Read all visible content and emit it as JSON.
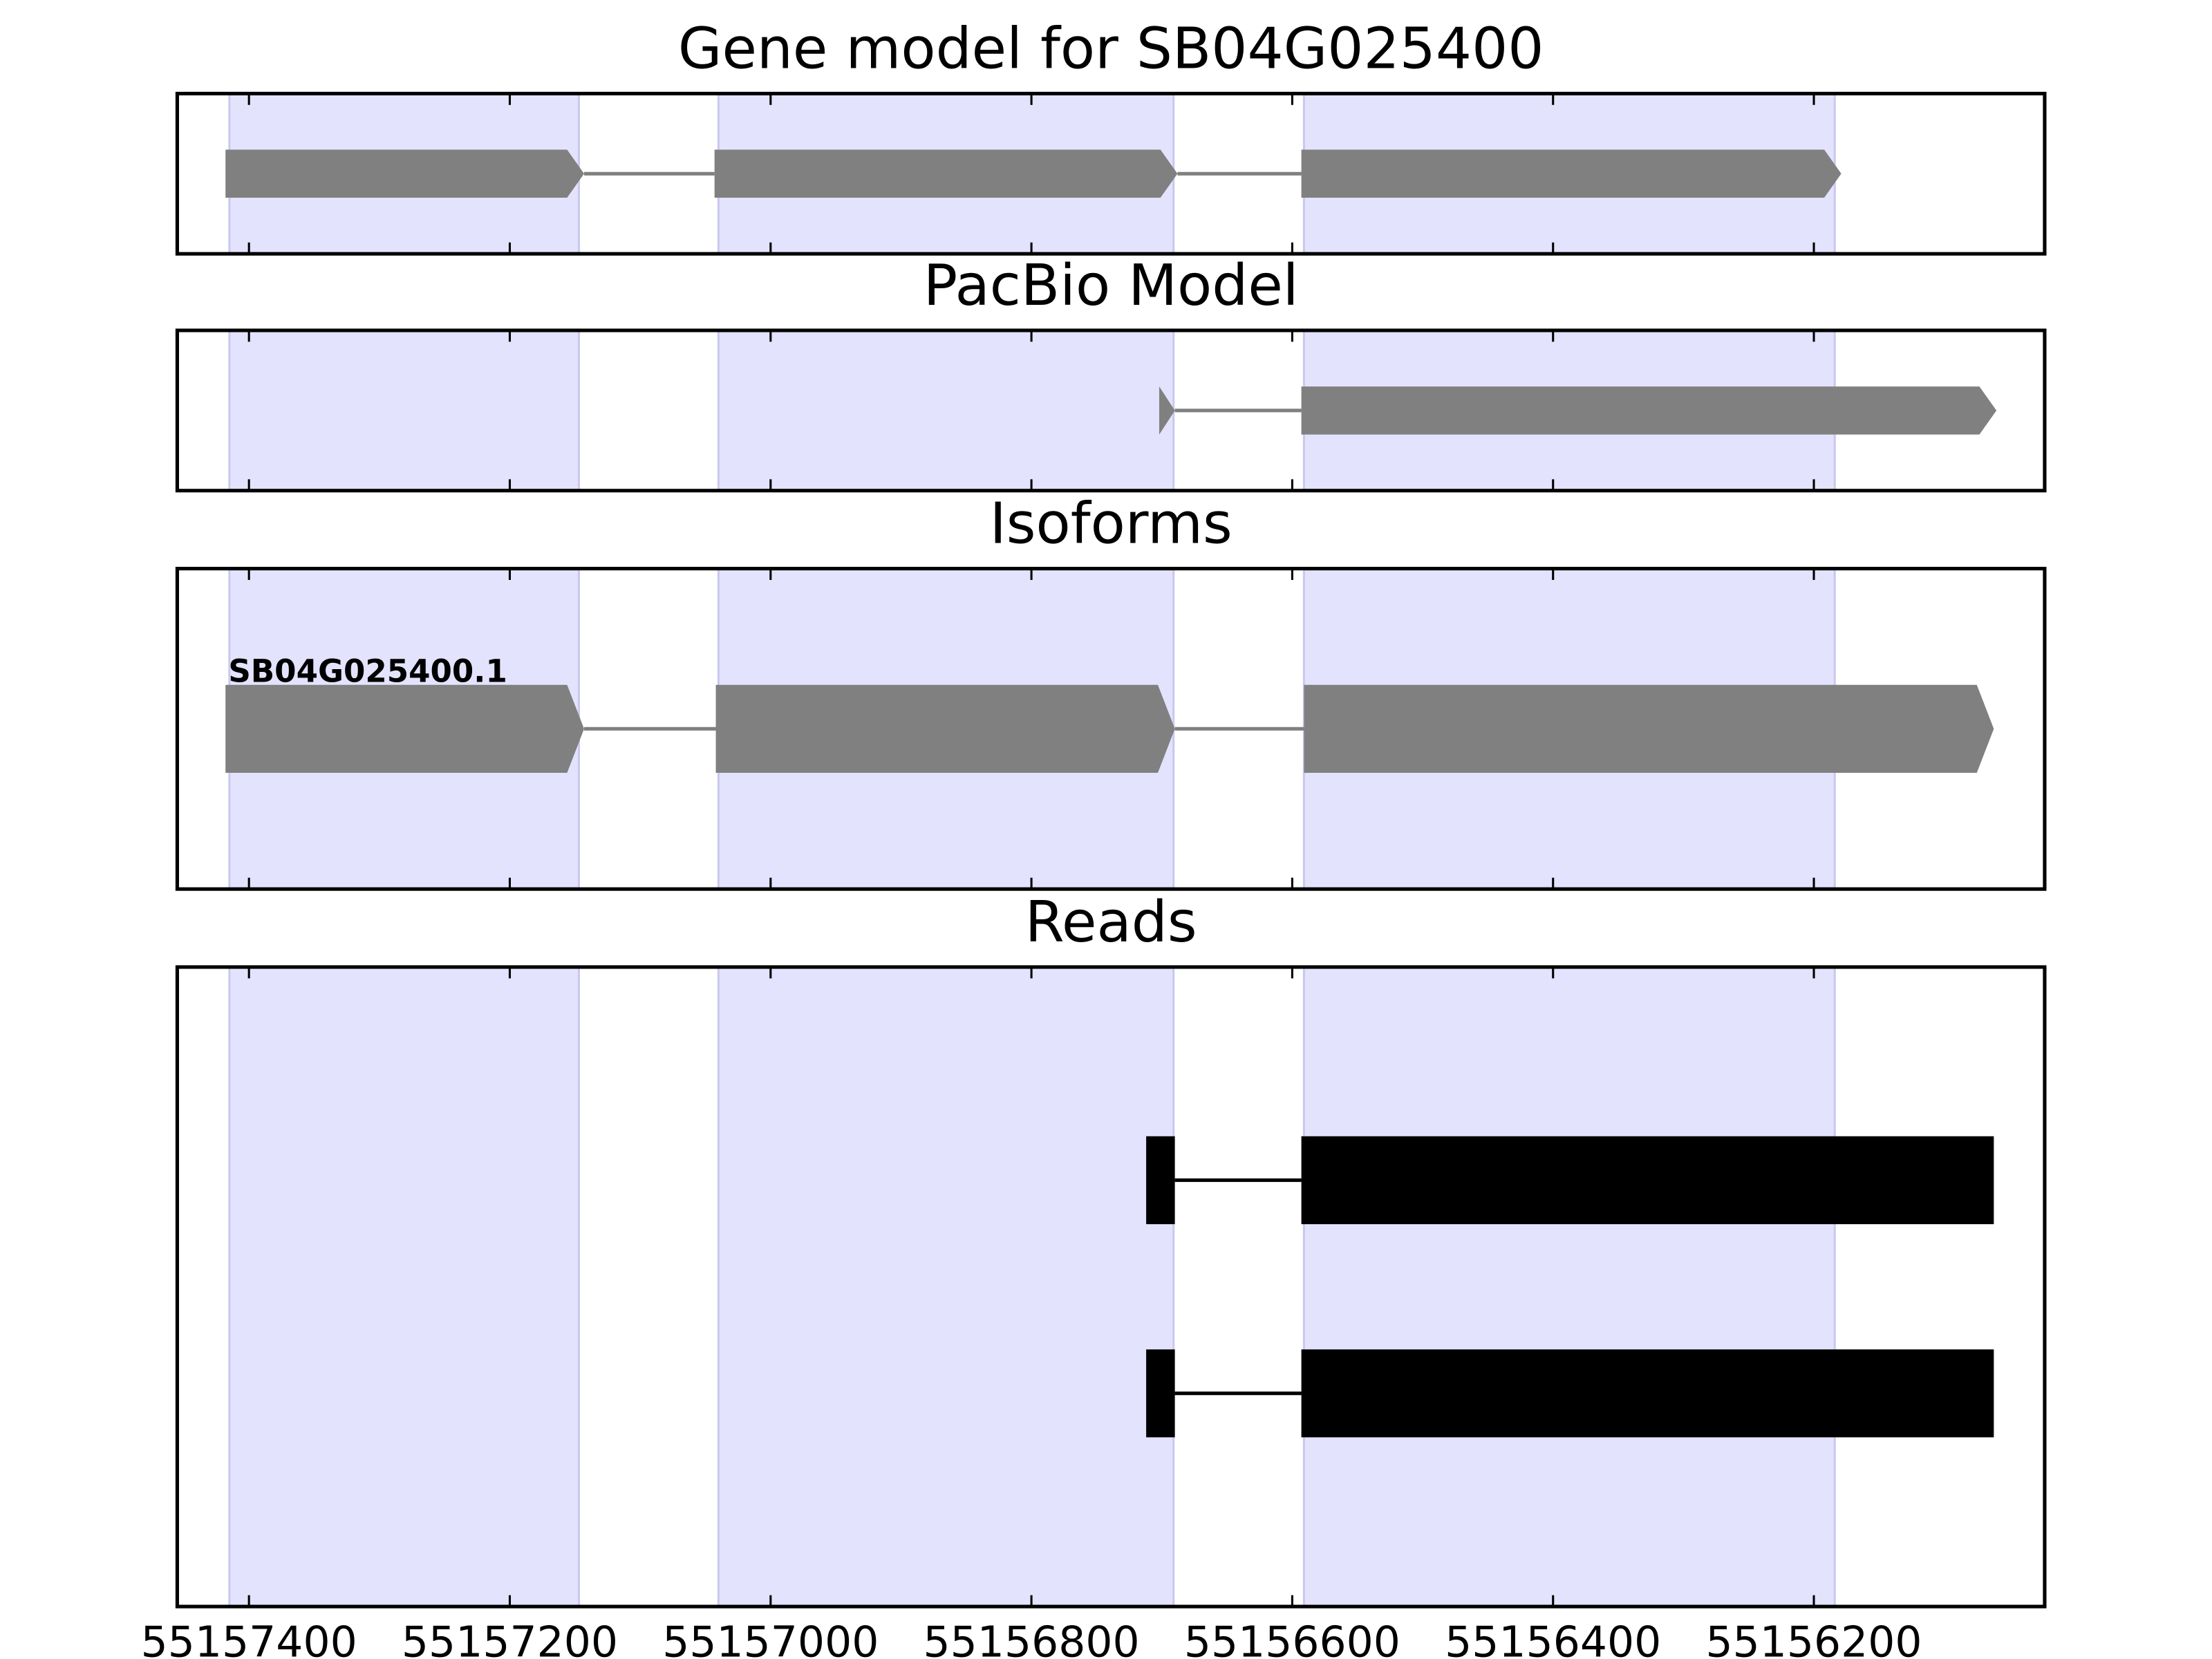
{
  "chart_data": [
    {
      "type": "gene-track",
      "title": "Gene model for SB04G025400",
      "xlim": [
        55157455,
        55156023
      ],
      "xticks": [
        55157400,
        55157200,
        55157000,
        55156800,
        55156600,
        55156400,
        55156200
      ],
      "highlights": [
        [
          55157415,
          55157147
        ],
        [
          55157040,
          55156691
        ],
        [
          55156591,
          55156184
        ]
      ],
      "highlight_color": "#e3e3fd",
      "arrow": true,
      "features": [
        {
          "color": "#808080",
          "exons": [
            [
              55157418,
              55157143
            ],
            [
              55157043,
              55156688
            ],
            [
              55156593,
              55156179
            ]
          ]
        }
      ]
    },
    {
      "type": "gene-track",
      "title": "PacBio Model",
      "xlim": [
        55157455,
        55156023
      ],
      "xticks": [
        55157400,
        55157200,
        55157000,
        55156800,
        55156600,
        55156400,
        55156200
      ],
      "highlights": [
        [
          55157415,
          55157147
        ],
        [
          55157040,
          55156691
        ],
        [
          55156591,
          55156184
        ]
      ],
      "highlight_color": "#e3e3fd",
      "arrow": true,
      "features": [
        {
          "color": "#808080",
          "exons": [
            [
              55156702,
              55156690
            ],
            [
              55156593,
              55156060
            ]
          ]
        }
      ]
    },
    {
      "type": "gene-track",
      "title": "Isoforms",
      "xlim": [
        55157455,
        55156023
      ],
      "xticks": [
        55157400,
        55157200,
        55157000,
        55156800,
        55156600,
        55156400,
        55156200
      ],
      "highlights": [
        [
          55157415,
          55157147
        ],
        [
          55157040,
          55156691
        ],
        [
          55156591,
          55156184
        ]
      ],
      "highlight_color": "#e3e3fd",
      "arrow": true,
      "features": [
        {
          "name": "SB04G025400.1",
          "color": "#808080",
          "exons": [
            [
              55157418,
              55157143
            ],
            [
              55157042,
              55156690
            ],
            [
              55156591,
              55156062
            ]
          ]
        }
      ]
    },
    {
      "type": "gene-track",
      "title": "Reads",
      "xlim": [
        55157455,
        55156023
      ],
      "xticks": [
        55157400,
        55157200,
        55157000,
        55156800,
        55156600,
        55156400,
        55156200
      ],
      "highlights": [
        [
          55157415,
          55157147
        ],
        [
          55157040,
          55156691
        ],
        [
          55156591,
          55156184
        ]
      ],
      "highlight_color": "#e3e3fd",
      "arrow": false,
      "features": [
        {
          "color": "#000000",
          "exons": [
            [
              55156712,
              55156690
            ],
            [
              55156593,
              55156062
            ]
          ]
        },
        {
          "color": "#000000",
          "exons": [
            [
              55156712,
              55156690
            ],
            [
              55156593,
              55156062
            ]
          ]
        }
      ]
    }
  ]
}
